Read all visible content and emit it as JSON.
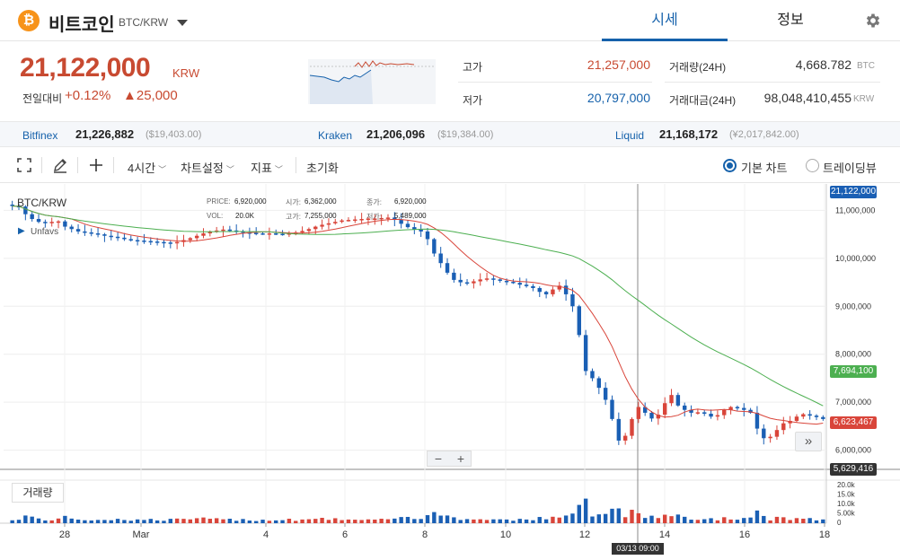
{
  "header": {
    "coin_logo": "₿",
    "coin_name": "비트코인",
    "pair": "BTC/KRW",
    "tabs": [
      "시세",
      "정보"
    ],
    "settings_icon": "gear-icon"
  },
  "summary": {
    "price": "21,122,000",
    "unit": "KRW",
    "change_label": "전일대비",
    "change_pct": "+0.12%",
    "change_amt": "▲25,000",
    "high_label": "고가",
    "high_value": "21,257,000",
    "low_label": "저가",
    "low_value": "20,797,000",
    "vol_label": "거래량(24H)",
    "vol_value": "4,668.782",
    "vol_unit": "BTC",
    "amt_label": "거래대금(24H)",
    "amt_value": "98,048,410,455",
    "amt_unit": "KRW",
    "colors": {
      "up": "#c84a31",
      "down": "#1561ab"
    }
  },
  "exchanges": [
    {
      "name": "Bitfinex",
      "price": "21,226,882",
      "sub": "($19,403.00)"
    },
    {
      "name": "Kraken",
      "price": "21,206,096",
      "sub": "($19,384.00)"
    },
    {
      "name": "Liquid",
      "price": "21,168,172",
      "sub": "(¥2,017,842.00)"
    }
  ],
  "toolbar": {
    "interval": "4시간",
    "chart_settings": "차트설정",
    "indicators": "지표",
    "reset": "초기화",
    "basic_chart": "기본 차트",
    "tradingview": "트레이딩뷰"
  },
  "chart": {
    "symbol": "BTC/KRW",
    "studies": "Unfavs",
    "ohlc": {
      "price_key": "PRICE:",
      "price": "6,920,000",
      "open_key": "시가:",
      "open": "6,362,000",
      "close_key": "종가:",
      "close": "6,920,000",
      "vol_key": "VOL:",
      "vol": "20.0K",
      "high_key": "고가:",
      "high": "7,255,000",
      "low_key": "저가:",
      "low": "5,489,000"
    },
    "volume_label": "거래량",
    "tags": {
      "current": "21,122,000",
      "ma_long": "7,694,100",
      "ma_short": "6,623,467",
      "crosshair": "5,629,416"
    },
    "crosshair_time": "03/13 09:00",
    "x_ticks": [
      {
        "label": "28",
        "pos": 0
      },
      {
        "label": "Mar",
        "pos": 1
      },
      {
        "label": "4",
        "pos": 2
      },
      {
        "label": "6",
        "pos": 3
      },
      {
        "label": "8",
        "pos": 4
      },
      {
        "label": "10",
        "pos": 5
      },
      {
        "label": "12",
        "pos": 6
      },
      {
        "label": "14",
        "pos": 7
      },
      {
        "label": "16",
        "pos": 8
      },
      {
        "label": "18",
        "pos": 9
      }
    ]
  },
  "chart_data": {
    "type": "candlestick",
    "y_ticks": [
      "11,000,000",
      "10,000,000",
      "9,000,000",
      "8,000,000",
      "7,000,000",
      "6,000,000"
    ],
    "volume_ticks": [
      "20.0k",
      "15.0k",
      "10.0k",
      "5.00k",
      "0"
    ],
    "ylim": [
      5600000,
      11550000
    ],
    "series": [
      {
        "name": "price",
        "values": [
          11090000,
          11080000,
          10920000,
          10820000,
          10760000,
          10740000,
          10760000,
          10770000,
          10660000,
          10610000,
          10560000,
          10540000,
          10520000,
          10500000,
          10470000,
          10450000,
          10430000,
          10400000,
          10380000,
          10370000,
          10360000,
          10350000,
          10340000,
          10330000,
          10320000,
          10340000,
          10380000,
          10420000,
          10470000,
          10520000,
          10560000,
          10580000,
          10600000,
          10580000,
          10560000,
          10540000,
          10530000,
          10520000,
          10510000,
          10520000,
          10510000,
          10500000,
          10520000,
          10540000,
          10570000,
          10610000,
          10660000,
          10700000,
          10730000,
          10760000,
          10790000,
          10800000,
          10810000,
          10820000,
          10830000,
          10830000,
          10840000,
          10850000,
          10800000,
          10720000,
          10650000,
          10600000,
          10560000,
          10400000,
          10100000,
          9900000,
          9700000,
          9550000,
          9500000,
          9480000,
          9520000,
          9560000,
          9580000,
          9560000,
          9530000,
          9510000,
          9490000,
          9450000,
          9420000,
          9380000,
          9300000,
          9250000,
          9350000,
          9430000,
          9250000,
          9000000,
          8400000,
          7650000,
          7500000,
          7300000,
          7050000,
          6650000,
          6200000,
          6300000,
          6650000,
          6900000,
          6780000,
          6660000,
          6740000,
          6980000,
          7150000,
          6930000,
          6840000,
          6780000,
          6790000,
          6760000,
          6700000,
          6730000,
          6840000,
          6900000,
          6880000,
          6840000,
          6780000,
          6450000,
          6250000,
          6280000,
          6420000,
          6560000,
          6610000,
          6700000,
          6750000,
          6720000,
          6690000,
          6650000
        ]
      }
    ],
    "moving_averages": [
      {
        "name": "short",
        "color": "#d9453a"
      },
      {
        "name": "long",
        "color": "#4caf50"
      }
    ],
    "colors": {
      "up": "#d9453a",
      "down": "#1a5fb4"
    }
  }
}
